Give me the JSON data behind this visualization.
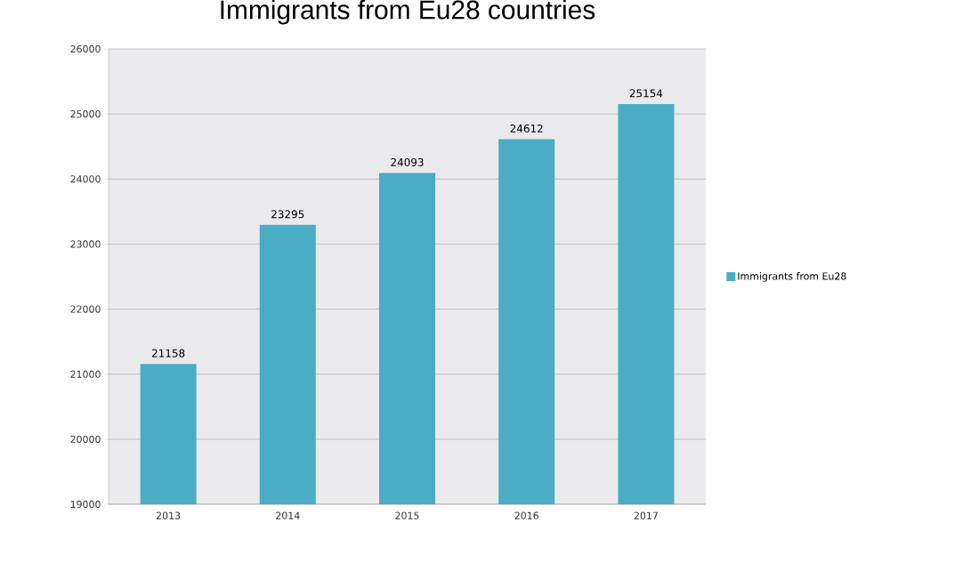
{
  "chart_data": {
    "type": "bar",
    "title": "Immigrants from Eu28 countries",
    "categories": [
      "2013",
      "2014",
      "2015",
      "2016",
      "2017"
    ],
    "series": [
      {
        "name": "Immigrants from Eu28",
        "color": "#4bacc6",
        "values": [
          21158,
          23295,
          24093,
          24612,
          25154
        ]
      }
    ],
    "ylim": [
      19000,
      26000
    ],
    "yticks": [
      19000,
      20000,
      21000,
      22000,
      23000,
      24000,
      25000,
      26000
    ],
    "grid": "y",
    "legend": "right",
    "data_labels": true
  }
}
